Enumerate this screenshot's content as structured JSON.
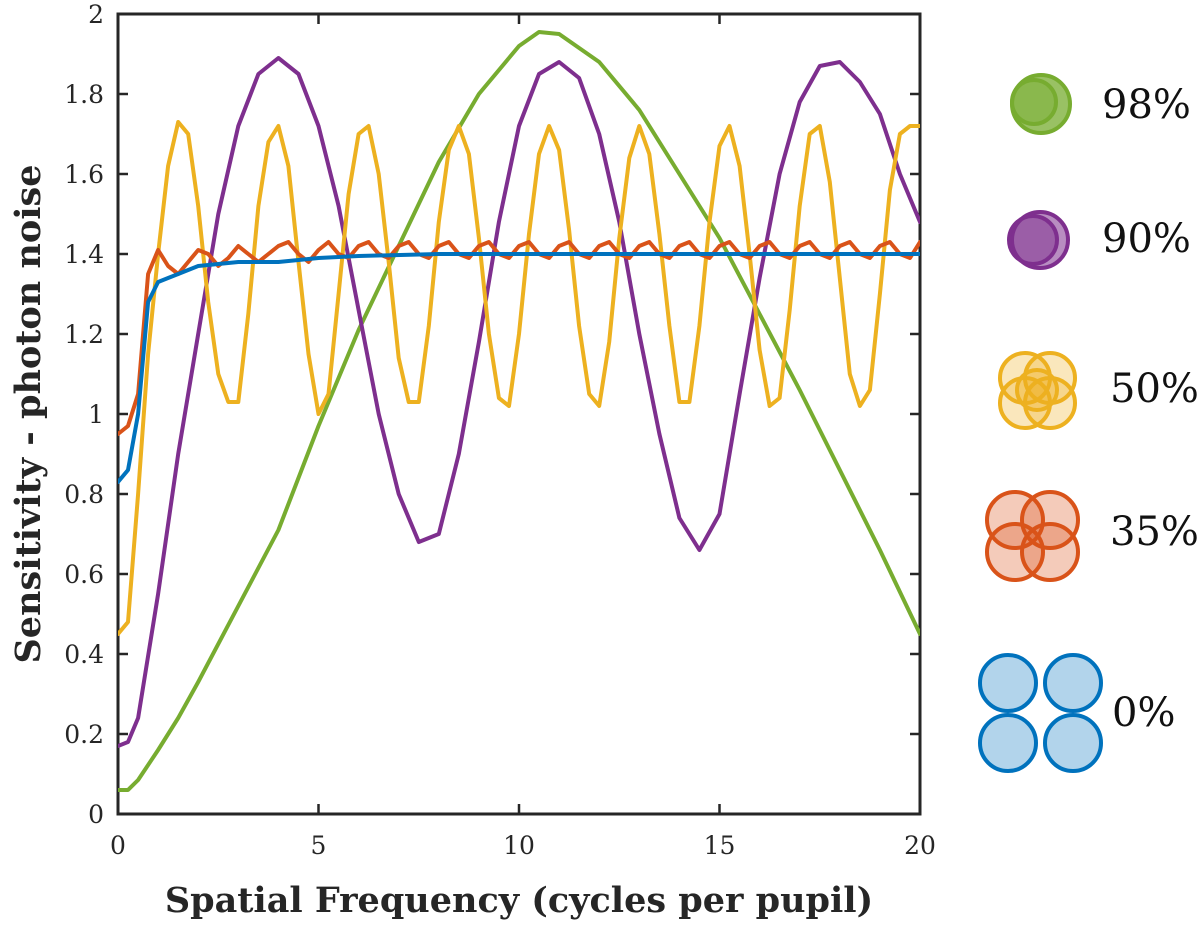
{
  "chart_data": {
    "type": "line",
    "title": "",
    "xlabel": "Spatial Frequency (cycles per pupil)",
    "ylabel": "Sensitivity - photon noise",
    "xlim": [
      0,
      20
    ],
    "ylim": [
      0,
      2
    ],
    "xticks": [
      0,
      5,
      10,
      15,
      20
    ],
    "xtick_labels": [
      "0",
      "5",
      "10",
      "15",
      "20"
    ],
    "yticks": [
      0,
      0.2,
      0.4,
      0.6,
      0.8,
      1,
      1.2,
      1.4,
      1.6,
      1.8,
      2
    ],
    "ytick_labels": [
      "0",
      "0.2",
      "0.4",
      "0.6",
      "0.8",
      "1",
      "1.2",
      "1.4",
      "1.6",
      "1.8",
      "2"
    ],
    "grid": false,
    "legend_position": "right-outside",
    "series": [
      {
        "name": "98%",
        "color": "#77AC30",
        "icon": "single-large-disk",
        "x": [
          0,
          0.25,
          0.5,
          1,
          1.5,
          2,
          3,
          4,
          5,
          6,
          7,
          8,
          9,
          10,
          10.5,
          11,
          12,
          13,
          14,
          15,
          16,
          17,
          18,
          19,
          20
        ],
        "y": [
          0.06,
          0.06,
          0.085,
          0.16,
          0.24,
          0.33,
          0.52,
          0.71,
          0.97,
          1.21,
          1.42,
          1.63,
          1.8,
          1.92,
          1.955,
          1.95,
          1.88,
          1.76,
          1.6,
          1.44,
          1.25,
          1.06,
          0.86,
          0.66,
          0.45
        ]
      },
      {
        "name": "90%",
        "color": "#7E2F8E",
        "icon": "double-offset-disk",
        "x": [
          0,
          0.25,
          0.5,
          1,
          1.5,
          2,
          2.5,
          3,
          3.5,
          4,
          4.5,
          5,
          5.5,
          6,
          6.5,
          7,
          7.5,
          8,
          8.5,
          9,
          9.5,
          10,
          10.5,
          11,
          11.5,
          12,
          12.5,
          13,
          13.5,
          14,
          14.5,
          15,
          15.5,
          16,
          16.5,
          17,
          17.5,
          18,
          18.5,
          19,
          19.5,
          20
        ],
        "y": [
          0.17,
          0.18,
          0.24,
          0.55,
          0.9,
          1.2,
          1.5,
          1.72,
          1.85,
          1.89,
          1.85,
          1.72,
          1.52,
          1.26,
          1.0,
          0.8,
          0.68,
          0.7,
          0.9,
          1.18,
          1.48,
          1.72,
          1.85,
          1.88,
          1.84,
          1.7,
          1.48,
          1.2,
          0.95,
          0.74,
          0.66,
          0.75,
          1.05,
          1.34,
          1.6,
          1.78,
          1.87,
          1.88,
          1.83,
          1.75,
          1.6,
          1.48
        ]
      },
      {
        "name": "50%",
        "color": "#EDB120",
        "icon": "four-overlapping-disks-tight",
        "x": [
          0,
          0.25,
          0.5,
          0.75,
          1,
          1.25,
          1.5,
          1.75,
          2,
          2.25,
          2.5,
          2.75,
          3,
          3.25,
          3.5,
          3.75,
          4,
          4.25,
          4.5,
          4.75,
          5,
          5.25,
          5.5,
          5.75,
          6,
          6.25,
          6.5,
          6.75,
          7,
          7.25,
          7.5,
          7.75,
          8,
          8.25,
          8.5,
          8.75,
          9,
          9.25,
          9.5,
          9.75,
          10,
          10.25,
          10.5,
          10.75,
          11,
          11.25,
          11.5,
          11.75,
          12,
          12.25,
          12.5,
          12.75,
          13,
          13.25,
          13.5,
          13.75,
          14,
          14.25,
          14.5,
          14.75,
          15,
          15.25,
          15.5,
          15.75,
          16,
          16.25,
          16.5,
          16.75,
          17,
          17.25,
          17.5,
          17.75,
          18,
          18.25,
          18.5,
          18.75,
          19,
          19.25,
          19.5,
          19.75,
          20
        ],
        "y": [
          0.45,
          0.48,
          0.8,
          1.15,
          1.4,
          1.62,
          1.73,
          1.7,
          1.52,
          1.28,
          1.1,
          1.03,
          1.03,
          1.25,
          1.52,
          1.68,
          1.72,
          1.62,
          1.38,
          1.15,
          1.0,
          1.05,
          1.3,
          1.55,
          1.7,
          1.72,
          1.6,
          1.38,
          1.14,
          1.03,
          1.03,
          1.22,
          1.48,
          1.66,
          1.72,
          1.65,
          1.44,
          1.2,
          1.04,
          1.02,
          1.2,
          1.45,
          1.65,
          1.72,
          1.66,
          1.46,
          1.22,
          1.05,
          1.02,
          1.18,
          1.44,
          1.64,
          1.72,
          1.65,
          1.45,
          1.22,
          1.03,
          1.03,
          1.22,
          1.48,
          1.67,
          1.72,
          1.62,
          1.4,
          1.16,
          1.02,
          1.04,
          1.26,
          1.52,
          1.7,
          1.72,
          1.58,
          1.34,
          1.1,
          1.02,
          1.06,
          1.3,
          1.56,
          1.7,
          1.72,
          1.72
        ]
      },
      {
        "name": "35%",
        "color": "#D95319",
        "icon": "four-overlapping-disks",
        "x": [
          0,
          0.25,
          0.5,
          0.75,
          1,
          1.25,
          1.5,
          1.75,
          2,
          2.25,
          2.5,
          2.75,
          3,
          3.25,
          3.5,
          3.75,
          4,
          4.25,
          4.5,
          4.75,
          5,
          5.25,
          5.5,
          5.75,
          6,
          6.25,
          6.5,
          6.75,
          7,
          7.25,
          7.5,
          7.75,
          8,
          8.25,
          8.5,
          8.75,
          9,
          9.25,
          9.5,
          9.75,
          10,
          10.25,
          10.5,
          10.75,
          11,
          11.25,
          11.5,
          11.75,
          12,
          12.25,
          12.5,
          12.75,
          13,
          13.25,
          13.5,
          13.75,
          14,
          14.25,
          14.5,
          14.75,
          15,
          15.25,
          15.5,
          15.75,
          16,
          16.25,
          16.5,
          16.75,
          17,
          17.25,
          17.5,
          17.75,
          18,
          18.25,
          18.5,
          18.75,
          19,
          19.25,
          19.5,
          19.75,
          20
        ],
        "y": [
          0.95,
          0.97,
          1.05,
          1.35,
          1.41,
          1.37,
          1.35,
          1.38,
          1.41,
          1.4,
          1.37,
          1.39,
          1.42,
          1.4,
          1.38,
          1.4,
          1.42,
          1.43,
          1.4,
          1.38,
          1.41,
          1.43,
          1.4,
          1.39,
          1.42,
          1.43,
          1.4,
          1.39,
          1.42,
          1.43,
          1.4,
          1.39,
          1.42,
          1.43,
          1.4,
          1.39,
          1.42,
          1.43,
          1.4,
          1.39,
          1.42,
          1.43,
          1.4,
          1.39,
          1.42,
          1.43,
          1.4,
          1.39,
          1.42,
          1.43,
          1.4,
          1.39,
          1.42,
          1.43,
          1.4,
          1.39,
          1.42,
          1.43,
          1.4,
          1.39,
          1.42,
          1.43,
          1.4,
          1.39,
          1.42,
          1.43,
          1.4,
          1.39,
          1.42,
          1.43,
          1.4,
          1.39,
          1.42,
          1.43,
          1.4,
          1.39,
          1.42,
          1.43,
          1.4,
          1.39,
          1.43
        ]
      },
      {
        "name": "0%",
        "color": "#0072BD",
        "icon": "four-separate-disks",
        "x": [
          0,
          0.25,
          0.5,
          0.75,
          1,
          1.25,
          1.5,
          2,
          3,
          4,
          5,
          6,
          8,
          10,
          12,
          14,
          16,
          18,
          20
        ],
        "y": [
          0.83,
          0.86,
          1.0,
          1.28,
          1.33,
          1.34,
          1.35,
          1.37,
          1.38,
          1.38,
          1.39,
          1.395,
          1.4,
          1.4,
          1.4,
          1.4,
          1.4,
          1.4,
          1.4
        ]
      }
    ]
  }
}
